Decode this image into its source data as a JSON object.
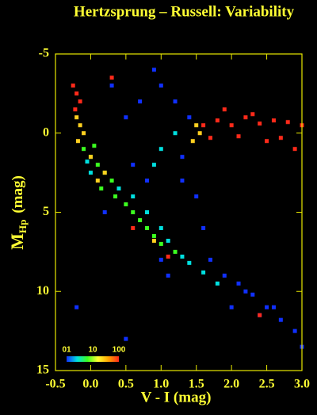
{
  "chart_data": {
    "type": "scatter",
    "title": "Hertzsprung – Russell: Variability",
    "x_label": "V - I  (mag)",
    "y_label": {
      "main": "M",
      "sub": "Hp",
      "unit": "(mag)"
    },
    "xlim": [
      -0.5,
      3.0
    ],
    "xticks": [
      -0.5,
      {
        "value": 0,
        "label": "0.0"
      },
      0.5,
      {
        "value": 1,
        "label": "1.0"
      },
      1.5,
      {
        "value": 2,
        "label": "2.0"
      },
      2.5,
      {
        "value": 3,
        "label": "3.0"
      }
    ],
    "ylim": [
      15,
      -5
    ],
    "yticks": [
      -5,
      0,
      5,
      10,
      15
    ],
    "series": [
      {
        "color": "#1030ff",
        "x": [
          0.5,
          0.7,
          1.0,
          1.2,
          1.4,
          0.6,
          0.8,
          1.3,
          1.5,
          1.7,
          1.9,
          2.1,
          2.3,
          2.5,
          2.7,
          2.9,
          3.0,
          2.0,
          2.2,
          1.0,
          1.1,
          0.3,
          0.9,
          1.3,
          0.2,
          2.4,
          2.6,
          1.6,
          -0.2,
          0.5
        ],
        "y": [
          -1,
          -2,
          -3,
          -2,
          -1,
          2,
          3,
          3,
          4,
          8,
          9,
          9.5,
          10.2,
          11,
          11.8,
          12.5,
          13.5,
          11,
          10,
          8,
          9,
          -3,
          -4,
          1.5,
          5,
          11.5,
          11,
          6,
          11,
          13
        ]
      },
      {
        "color": "#00e0e0",
        "x": [
          0.4,
          0.6,
          0.8,
          1.0,
          1.1,
          1.3,
          1.4,
          1.6,
          1.8,
          0.9,
          1.0,
          1.2,
          0.0,
          -0.05
        ],
        "y": [
          3.5,
          4,
          5,
          6,
          6.8,
          7.8,
          8.2,
          8.8,
          9.5,
          2,
          1,
          0,
          2.5,
          1.8
        ]
      },
      {
        "color": "#3cff20",
        "x": [
          -0.1,
          0,
          0.1,
          0.2,
          0.3,
          0.35,
          0.5,
          0.6,
          0.7,
          0.8,
          0.9,
          1.0,
          1.2,
          0.15,
          0.05
        ],
        "y": [
          1,
          1.5,
          2,
          2.5,
          3,
          4,
          4.5,
          5,
          5.5,
          6,
          6.5,
          7,
          7.5,
          3.5,
          0.8
        ]
      },
      {
        "color": "#ffd020",
        "x": [
          -0.2,
          -0.15,
          -0.1,
          -0.18,
          1.5,
          1.55,
          1.45,
          0.0,
          0.2,
          0.9,
          0.1
        ],
        "y": [
          -1,
          -0.5,
          0,
          0.5,
          -0.5,
          0,
          0.5,
          1.5,
          2.5,
          6.8,
          3
        ]
      },
      {
        "color": "#ff2a1a",
        "x": [
          -0.25,
          -0.2,
          -0.15,
          -0.22,
          1.6,
          1.8,
          2.0,
          2.2,
          2.4,
          2.6,
          2.8,
          3.0,
          1.7,
          2.1,
          2.5,
          2.9,
          1.9,
          2.3,
          2.7,
          0.6,
          1.1,
          0.3,
          2.4
        ],
        "y": [
          -3,
          -2.5,
          -2,
          -1.5,
          -0.5,
          -0.8,
          -0.5,
          -1,
          -0.6,
          -0.8,
          -0.7,
          -0.5,
          0.3,
          0.2,
          0.5,
          1,
          -1.5,
          -1.2,
          0.3,
          6,
          7.8,
          -3.5,
          11.5
        ]
      }
    ],
    "colorbar": {
      "lim": [
        1,
        100
      ],
      "log": true,
      "colors": [
        "#1030ff",
        "#00e0e0",
        "#3cff20",
        "#ffff30",
        "#ffa500",
        "#ff2a1a"
      ],
      "ticks": [
        {
          "value": 1,
          "label": "01"
        },
        10,
        100
      ]
    }
  }
}
